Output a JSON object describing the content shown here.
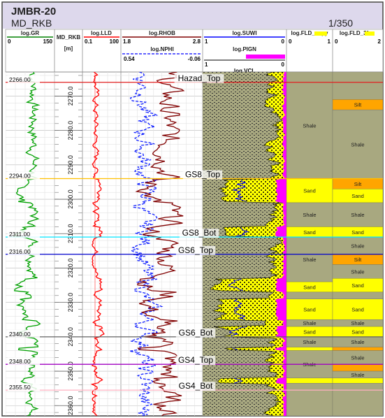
{
  "header": {
    "well": "JMBR-20",
    "datum": "MD_RKB",
    "scale": "1/350"
  },
  "tracks": [
    {
      "name": "log.GR",
      "min": "0",
      "max": "150",
      "color": "#008000"
    },
    {
      "name": "MD_RKB",
      "unit": "[m]"
    },
    {
      "name": "log.LLD",
      "min": "0.1",
      "max": "100",
      "color": "#ff0000"
    },
    {
      "name": "log.RHOB",
      "min": "1.8",
      "max": "2.8",
      "color": "#800000"
    },
    {
      "name": "log.NPHI",
      "min": "0.54",
      "max": "-0.06",
      "color": "#0000ff"
    },
    {
      "name": "log.SUWI",
      "min": "1",
      "max": "0",
      "color": "#0000ff"
    },
    {
      "name": "log.PIGN",
      "min": "1",
      "max": "0",
      "color": "#ff00ff"
    },
    {
      "name": "log.VCL",
      "color": "#000000"
    },
    {
      "name": "log.FLD_copy",
      "min": "0",
      "max": "1"
    },
    {
      "name": "log.FLD_3fac",
      "min": "0",
      "max": "2"
    }
  ],
  "depth_ticks": [
    "2270.0",
    "2280.0",
    "2290.0",
    "2300.0",
    "2310.0",
    "2320.0",
    "2330.0",
    "2340.0",
    "2350.0",
    "2360.0"
  ],
  "depth_range": [
    2263,
    2363
  ],
  "tops": [
    {
      "name": "Hazad_Top",
      "depth_label": "2266.00",
      "depth": 2266.0,
      "color": "#e02020"
    },
    {
      "name": "GS8_Top",
      "depth_label": "2294.00",
      "depth": 2294.0,
      "color": "#ffc000"
    },
    {
      "name": "GS8_Bot",
      "depth_label": "2311.00",
      "depth": 2311.0,
      "color": "#00e5ff"
    },
    {
      "name": "GS6_Top",
      "depth_label": "2316.00",
      "depth": 2316.0,
      "color": "#0000cc"
    },
    {
      "name": "GS6_Bot",
      "depth_label": "2340.00",
      "depth": 2340.0,
      "color": "#606060"
    },
    {
      "name": "GS4_Top",
      "depth_label": "2348.00",
      "depth": 2348.0,
      "color": "#a000c0"
    },
    {
      "name": "GS4_Bot",
      "depth_label": "2355.50",
      "depth": 2355.5,
      "color": "#ffb0c0"
    }
  ],
  "facies_copy": [
    {
      "from": 2263,
      "to": 2294,
      "label": "Shale",
      "color": "#a8a880"
    },
    {
      "from": 2294,
      "to": 2301,
      "label": "Sand",
      "color": "#ffff00"
    },
    {
      "from": 2301,
      "to": 2308,
      "label": "Shale",
      "color": "#a8a880"
    },
    {
      "from": 2308,
      "to": 2311,
      "label": "Sand",
      "color": "#ffff00"
    },
    {
      "from": 2311,
      "to": 2324,
      "label": "Shale",
      "color": "#a8a880"
    },
    {
      "from": 2324,
      "to": 2327,
      "label": "Sand",
      "color": "#ffff00"
    },
    {
      "from": 2327,
      "to": 2329,
      "label": "",
      "color": "#a8a880"
    },
    {
      "from": 2329,
      "to": 2335,
      "label": "Sand",
      "color": "#ffff00"
    },
    {
      "from": 2335,
      "to": 2337,
      "label": "Shale",
      "color": "#a8a880"
    },
    {
      "from": 2337,
      "to": 2340,
      "label": "Sand",
      "color": "#ffff00"
    },
    {
      "from": 2340,
      "to": 2343,
      "label": "Shale",
      "color": "#a8a880"
    },
    {
      "from": 2343,
      "to": 2344,
      "label": "",
      "color": "#ffff00"
    },
    {
      "from": 2344,
      "to": 2352,
      "label": "Shale",
      "color": "#a8a880"
    },
    {
      "from": 2352,
      "to": 2353.5,
      "label": "",
      "color": "#ffff00"
    },
    {
      "from": 2353.5,
      "to": 2363,
      "label": "",
      "color": "#a8a880"
    }
  ],
  "facies_3fac": [
    {
      "from": 2263,
      "to": 2271,
      "label": "",
      "color": "#a8a880"
    },
    {
      "from": 2271,
      "to": 2274,
      "label": "Silt",
      "color": "#ffa500"
    },
    {
      "from": 2274,
      "to": 2294,
      "label": "Shale",
      "color": "#a8a880"
    },
    {
      "from": 2294,
      "to": 2297,
      "label": "Silt",
      "color": "#ffa500"
    },
    {
      "from": 2297,
      "to": 2301,
      "label": "Sand",
      "color": "#ffff00"
    },
    {
      "from": 2301,
      "to": 2308,
      "label": "Shale",
      "color": "#a8a880"
    },
    {
      "from": 2308,
      "to": 2311,
      "label": "Sand",
      "color": "#ffff00"
    },
    {
      "from": 2311,
      "to": 2316,
      "label": "Shale",
      "color": "#a8a880"
    },
    {
      "from": 2316,
      "to": 2319,
      "label": "Silt",
      "color": "#ffa500"
    },
    {
      "from": 2319,
      "to": 2323,
      "label": "Shale",
      "color": "#a8a880"
    },
    {
      "from": 2323,
      "to": 2327,
      "label": "Sand",
      "color": "#ffff00"
    },
    {
      "from": 2327,
      "to": 2329,
      "label": "",
      "color": "#a8a880"
    },
    {
      "from": 2329,
      "to": 2335,
      "label": "Sand",
      "color": "#ffff00"
    },
    {
      "from": 2335,
      "to": 2337,
      "label": "Shale",
      "color": "#a8a880"
    },
    {
      "from": 2337,
      "to": 2340,
      "label": "Sand",
      "color": "#ffff00"
    },
    {
      "from": 2340,
      "to": 2343,
      "label": "Shale",
      "color": "#a8a880"
    },
    {
      "from": 2343,
      "to": 2344,
      "label": "",
      "color": "#ffa500"
    },
    {
      "from": 2344,
      "to": 2348,
      "label": "Shale",
      "color": "#a8a880"
    },
    {
      "from": 2348,
      "to": 2350,
      "label": "",
      "color": "#ffa500"
    },
    {
      "from": 2350,
      "to": 2352,
      "label": "Shale",
      "color": "#a8a880"
    },
    {
      "from": 2352,
      "to": 2353.5,
      "label": "",
      "color": "#ffff00"
    },
    {
      "from": 2353.5,
      "to": 2363,
      "label": "",
      "color": "#a8a880"
    }
  ],
  "colors": {
    "header_bg": "#ddd8ec",
    "grid": "#c8c8c8",
    "shale": "#a8a880",
    "sand": "#ffff00",
    "silt": "#ffa500",
    "magenta": "#ff00ff"
  }
}
